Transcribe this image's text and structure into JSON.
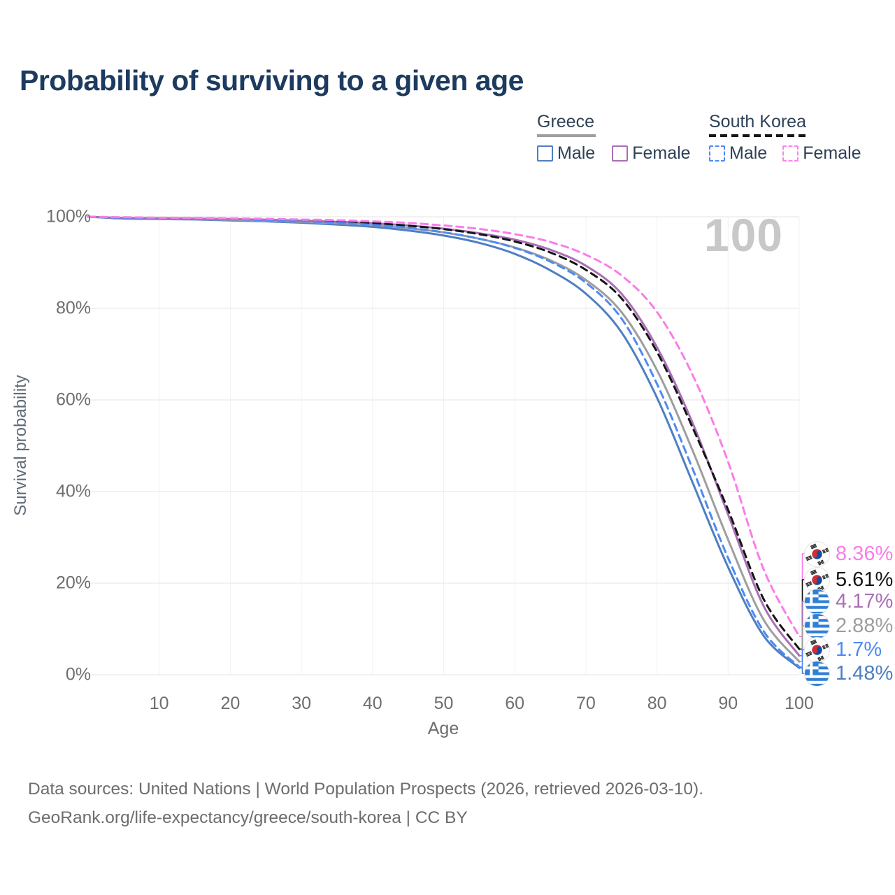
{
  "header": {
    "title": "Probability of surviving to a given age"
  },
  "legend": {
    "greece": {
      "label": "Greece",
      "male_label": "Male",
      "female_label": "Female"
    },
    "south_korea": {
      "label": "South Korea",
      "male_label": "Male",
      "female_label": "Female"
    }
  },
  "axes": {
    "y_title": "Survival probability",
    "x_title": "Age"
  },
  "plot": {
    "age_counter": "100"
  },
  "footer": {
    "line1": "Data sources: United Nations | World Population Prospects (2026, retrieved 2026-03-10).",
    "line2": "GeoRank.org/life-expectancy/greece/south-korea | CC BY"
  },
  "colors": {
    "greece_male": "#4e7fc1",
    "greece_female": "#a96fb5",
    "greece_overall": "#9e9e9e",
    "korea_male": "#4d8af5",
    "korea_female": "#fb7ce9",
    "korea_overall": "#151515",
    "title_navy": "#1d3a5f",
    "gridline": "#e6e6e6",
    "vertical_gridline": "#f2f2f2"
  },
  "chart_data": {
    "type": "line",
    "title": "Probability of surviving to a given age",
    "xlabel": "Age",
    "ylabel": "Survival probability",
    "x_ticks": [
      10,
      20,
      30,
      40,
      50,
      60,
      70,
      80,
      90,
      100
    ],
    "y_ticks": [
      0,
      20,
      40,
      60,
      80,
      100
    ],
    "xlim": [
      0,
      100
    ],
    "ylim": [
      0,
      100
    ],
    "grid": "horizontal-strong-vertical-faint",
    "legend_position": "top-right",
    "x": [
      0,
      5,
      10,
      15,
      20,
      25,
      30,
      35,
      40,
      45,
      50,
      55,
      60,
      65,
      70,
      75,
      80,
      85,
      90,
      95,
      100
    ],
    "series": [
      {
        "name": "Greece Male",
        "country": "Greece",
        "sex": "Male",
        "style": "solid",
        "color": "#4e7fc1",
        "end_label": "1.48%",
        "flag": "greece",
        "values": [
          100,
          99.6,
          99.5,
          99.4,
          99.2,
          99.0,
          98.7,
          98.3,
          97.8,
          97.0,
          95.9,
          94.3,
          91.9,
          88.3,
          83.2,
          74.8,
          60.5,
          42.0,
          23.5,
          8.5,
          1.48
        ]
      },
      {
        "name": "Greece Overall",
        "country": "Greece",
        "sex": "Both",
        "style": "solid",
        "color": "#9e9e9e",
        "end_label": "2.88%",
        "flag": "greece",
        "values": [
          100,
          99.7,
          99.6,
          99.5,
          99.35,
          99.15,
          98.9,
          98.6,
          98.2,
          97.5,
          96.6,
          95.2,
          93.3,
          90.5,
          86.2,
          79.2,
          66.5,
          49.0,
          29.5,
          12.0,
          2.88
        ]
      },
      {
        "name": "Greece Female",
        "country": "Greece",
        "sex": "Female",
        "style": "solid",
        "color": "#a96fb5",
        "end_label": "4.17%",
        "flag": "greece",
        "values": [
          100,
          99.75,
          99.7,
          99.6,
          99.5,
          99.35,
          99.15,
          98.9,
          98.6,
          98.1,
          97.4,
          96.4,
          95.0,
          92.8,
          89.3,
          83.2,
          71.5,
          55.0,
          35.0,
          15.0,
          4.17
        ]
      },
      {
        "name": "South Korea Overall",
        "country": "South Korea",
        "sex": "Both",
        "style": "dashed",
        "color": "#151515",
        "end_label": "5.61%",
        "flag": "korea",
        "values": [
          100,
          99.8,
          99.75,
          99.65,
          99.55,
          99.4,
          99.2,
          99.0,
          98.6,
          98.05,
          97.3,
          96.2,
          94.6,
          92.2,
          88.4,
          82.2,
          70.5,
          54.0,
          36.0,
          16.5,
          5.61
        ]
      },
      {
        "name": "South Korea Male",
        "country": "South Korea",
        "sex": "Male",
        "style": "dashed",
        "color": "#4d8af5",
        "end_label": "1.7%",
        "flag": "korea",
        "values": [
          100,
          99.75,
          99.7,
          99.6,
          99.45,
          99.25,
          99.0,
          98.7,
          98.2,
          97.6,
          96.6,
          95.2,
          93.2,
          90.2,
          85.6,
          77.8,
          63.5,
          45.0,
          25.5,
          9.5,
          1.7
        ]
      },
      {
        "name": "South Korea Female",
        "country": "South Korea",
        "sex": "Female",
        "style": "dashed",
        "color": "#fb7ce9",
        "end_label": "8.36%",
        "flag": "korea",
        "values": [
          100,
          99.9,
          99.8,
          99.75,
          99.65,
          99.55,
          99.4,
          99.25,
          99.0,
          98.65,
          98.1,
          97.35,
          96.2,
          94.5,
          91.7,
          87.2,
          79.2,
          65.5,
          46.5,
          23.0,
          8.36
        ]
      }
    ],
    "end_labels": [
      {
        "value": "8.36%",
        "series": "South Korea Female",
        "color": "#fb7ce9",
        "flag": "korea"
      },
      {
        "value": "5.61%",
        "series": "South Korea Overall",
        "color": "#151515",
        "flag": "korea"
      },
      {
        "value": "4.17%",
        "series": "Greece Female",
        "color": "#a96fb5",
        "flag": "greece"
      },
      {
        "value": "2.88%",
        "series": "Greece Overall",
        "color": "#9e9e9e",
        "flag": "greece"
      },
      {
        "value": "1.7%",
        "series": "South Korea Male",
        "color": "#4d8af5",
        "flag": "korea"
      },
      {
        "value": "1.48%",
        "series": "Greece Male",
        "color": "#4e7fc1",
        "flag": "greece"
      }
    ]
  }
}
